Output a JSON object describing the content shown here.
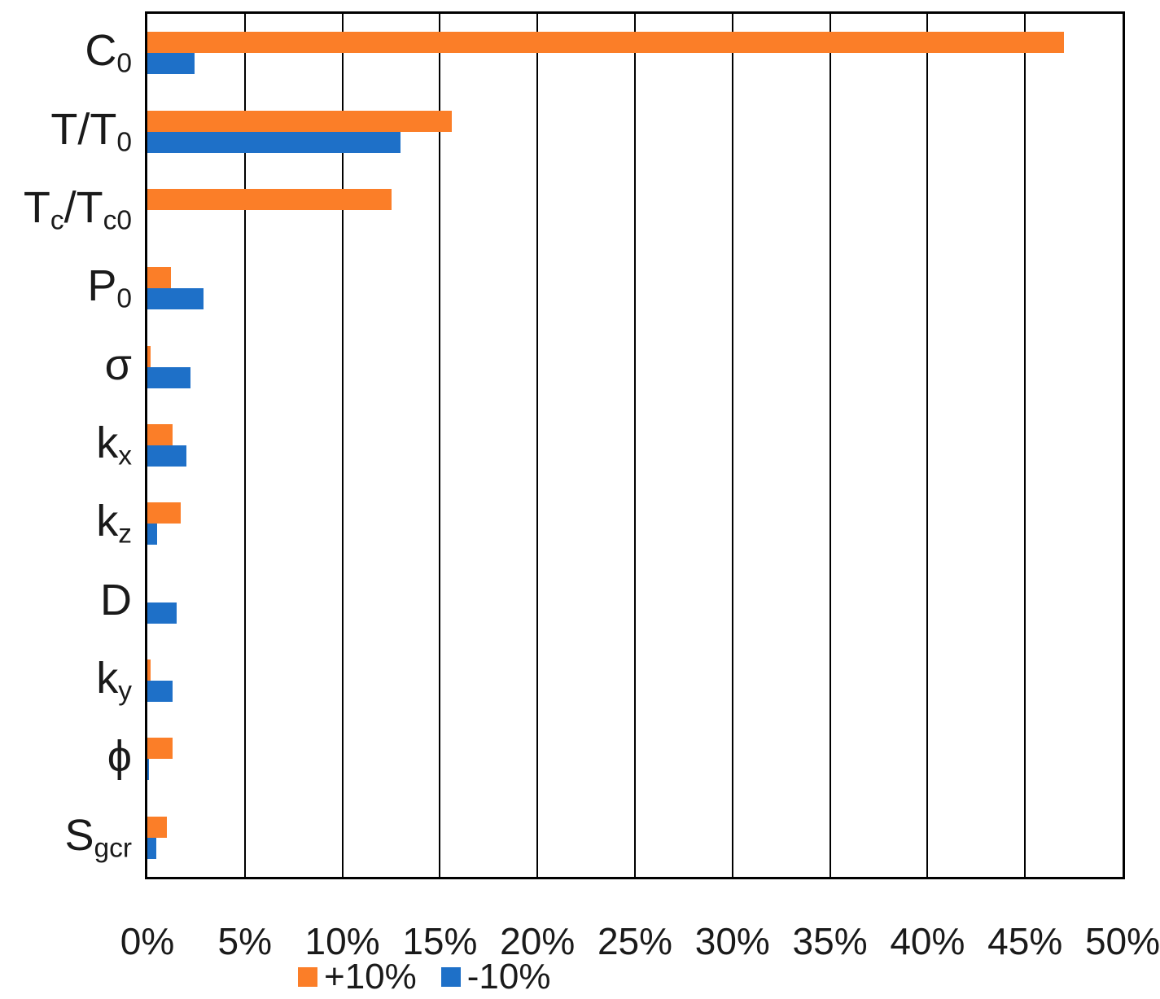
{
  "chart_data": {
    "type": "bar",
    "orientation": "horizontal",
    "title": "",
    "xlabel": "",
    "ylabel": "",
    "categories": [
      "C_{0}",
      "T/T_{0}",
      "T_{c}/T_{c0}",
      "P_{0}",
      "σ",
      "k_{x}",
      "k_{z}",
      "D",
      "k_{y}",
      "ϕ",
      "S_{gcr}"
    ],
    "series": [
      {
        "name": "+10%",
        "color": "#FB7E28",
        "values": [
          47.0,
          15.6,
          12.5,
          1.2,
          0.15,
          1.3,
          1.7,
          0,
          0.15,
          1.3,
          1.0
        ]
      },
      {
        "name": "-10%",
        "color": "#1E70C8",
        "values": [
          2.4,
          13.0,
          0,
          2.9,
          2.2,
          2.0,
          0.5,
          1.5,
          1.3,
          0.08,
          0.45
        ]
      }
    ],
    "x_axis": {
      "min": 0,
      "max": 50,
      "tick_step": 5,
      "tick_labels": [
        "0%",
        "5%",
        "10%",
        "15%",
        "20%",
        "25%",
        "30%",
        "35%",
        "40%",
        "45%",
        "50%"
      ],
      "unit": "percent"
    },
    "grid": "vertical-black-lines",
    "plot_border_color": "#000000",
    "legend_position": "bottom-left"
  }
}
